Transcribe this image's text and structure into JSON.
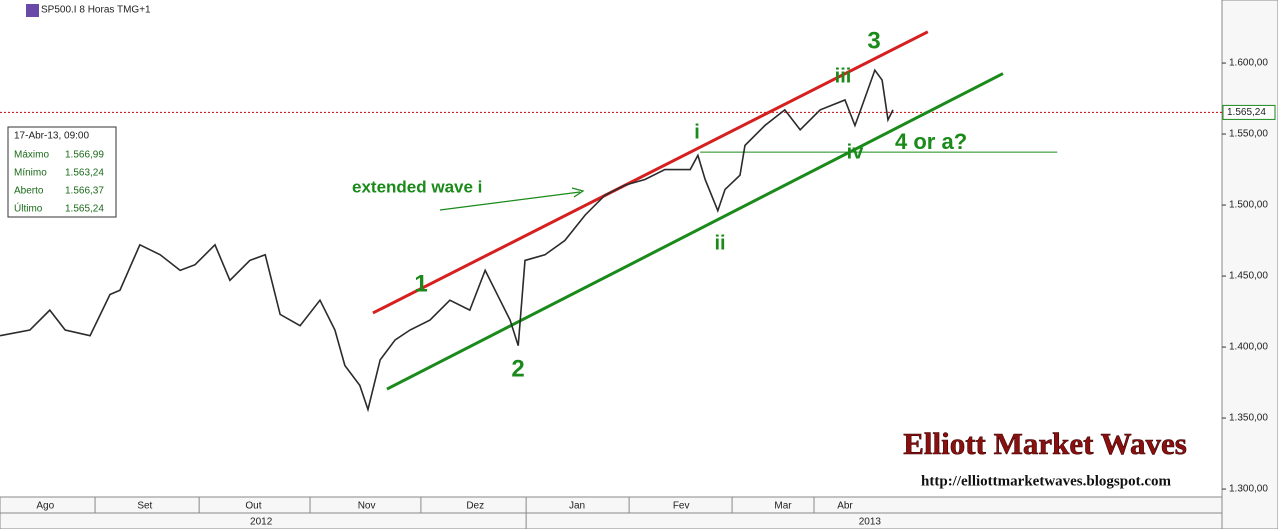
{
  "chart_data": {
    "type": "line",
    "header": "SP500.I 8 Horas TMG+1",
    "x": [
      0,
      6.6,
      11,
      14.4,
      19.9,
      24.3,
      26.5,
      30.9,
      35.4,
      39.8,
      43.1,
      47.5,
      50.8,
      55.2,
      58.6,
      61.9,
      66.3,
      70.7,
      74,
      76.2,
      79.5,
      81.3,
      84,
      87.3,
      90.6,
      95,
      99.4,
      103.8,
      107.2,
      110.5,
      112.7,
      114.5,
      115.3,
      116,
      120.4,
      124.8,
      129.3,
      133.7,
      138.1,
      142.5,
      146.9,
      152.5,
      154.2,
      155.8,
      158.6,
      160.2,
      163.5,
      164.6,
      169,
      173.4,
      176.8,
      181.2,
      186.7,
      188.9,
      190.5,
      193.3,
      194.9,
      196.2,
      197.3
    ],
    "series": [
      {
        "color": "#2b2b2b",
        "values": [
          1408,
          1412,
          1426,
          1412,
          1408,
          1437,
          1440,
          1472,
          1465,
          1454,
          1458,
          1472,
          1447,
          1461,
          1465,
          1423,
          1415,
          1433,
          1412,
          1387,
          1373,
          1356,
          1391,
          1405,
          1412,
          1419,
          1433,
          1426,
          1454,
          1433,
          1419,
          1401,
          1433,
          1461,
          1465,
          1475,
          1493,
          1507,
          1514,
          1518,
          1525,
          1525,
          1535,
          1518,
          1496,
          1511,
          1521,
          1542,
          1556,
          1567,
          1553,
          1567,
          1574,
          1556,
          1570,
          1595,
          1588,
          1560,
          1567
        ]
      }
    ],
    "trendlines": [
      {
        "color": "#d62020",
        "x": [
          82.4,
          205
        ],
        "values": [
          1424,
          1622
        ]
      },
      {
        "color": "#1a8a1a",
        "x": [
          85.5,
          221.6
        ],
        "values": [
          1370.4,
          1592.6
        ]
      },
      {
        "color": "#1a8a1a",
        "x": [
          154.7,
          233.6
        ],
        "values": [
          1537.3,
          1537.3
        ]
      }
    ],
    "xlim": [
      0,
      270
    ],
    "ylim": [
      1294.4,
      1644.4
    ],
    "xticks": [
      {
        "value": 10,
        "label": "Ago"
      },
      {
        "value": 32,
        "label": "Set"
      },
      {
        "value": 56,
        "label": "Out"
      },
      {
        "value": 81,
        "label": "Nov"
      },
      {
        "value": 105,
        "label": "Dez"
      },
      {
        "value": 127.5,
        "label": "Jan"
      },
      {
        "value": 150.5,
        "label": "Fev"
      },
      {
        "value": 173,
        "label": "Mar"
      },
      {
        "value": 186.7,
        "label": "Abr"
      }
    ],
    "years": [
      {
        "value": 57.7,
        "label": "2012"
      },
      {
        "value": 192.2,
        "label": "2013"
      }
    ],
    "yticks": [
      {
        "value": 1300,
        "label": "1.300,00"
      },
      {
        "value": 1350,
        "label": "1.350,00"
      },
      {
        "value": 1400,
        "label": "1.400,00"
      },
      {
        "value": 1450,
        "label": "1.450,00"
      },
      {
        "value": 1500,
        "label": "1.500,00"
      },
      {
        "value": 1550,
        "label": "1.550,00"
      },
      {
        "value": 1600,
        "label": "1.600,00"
      }
    ],
    "last_price": {
      "value": 1565.24,
      "label": "1.565,24",
      "color": "#cc0000"
    },
    "info_box": {
      "date": "17-Abr-13, 09:00",
      "rows": [
        [
          "Máximo",
          "1.566,99"
        ],
        [
          "Mínimo",
          "1.563,24"
        ],
        [
          "Aberto",
          "1.566,37"
        ],
        [
          "Último",
          "1.565,24"
        ]
      ]
    },
    "annotations": [
      "3",
      "iii",
      "i",
      "ii",
      "iv",
      "4 or a?",
      "1",
      "2",
      "extended wave i"
    ],
    "watermark": "Elliott Market Waves",
    "url": "http://elliottmarketwaves.blogspot.com"
  }
}
